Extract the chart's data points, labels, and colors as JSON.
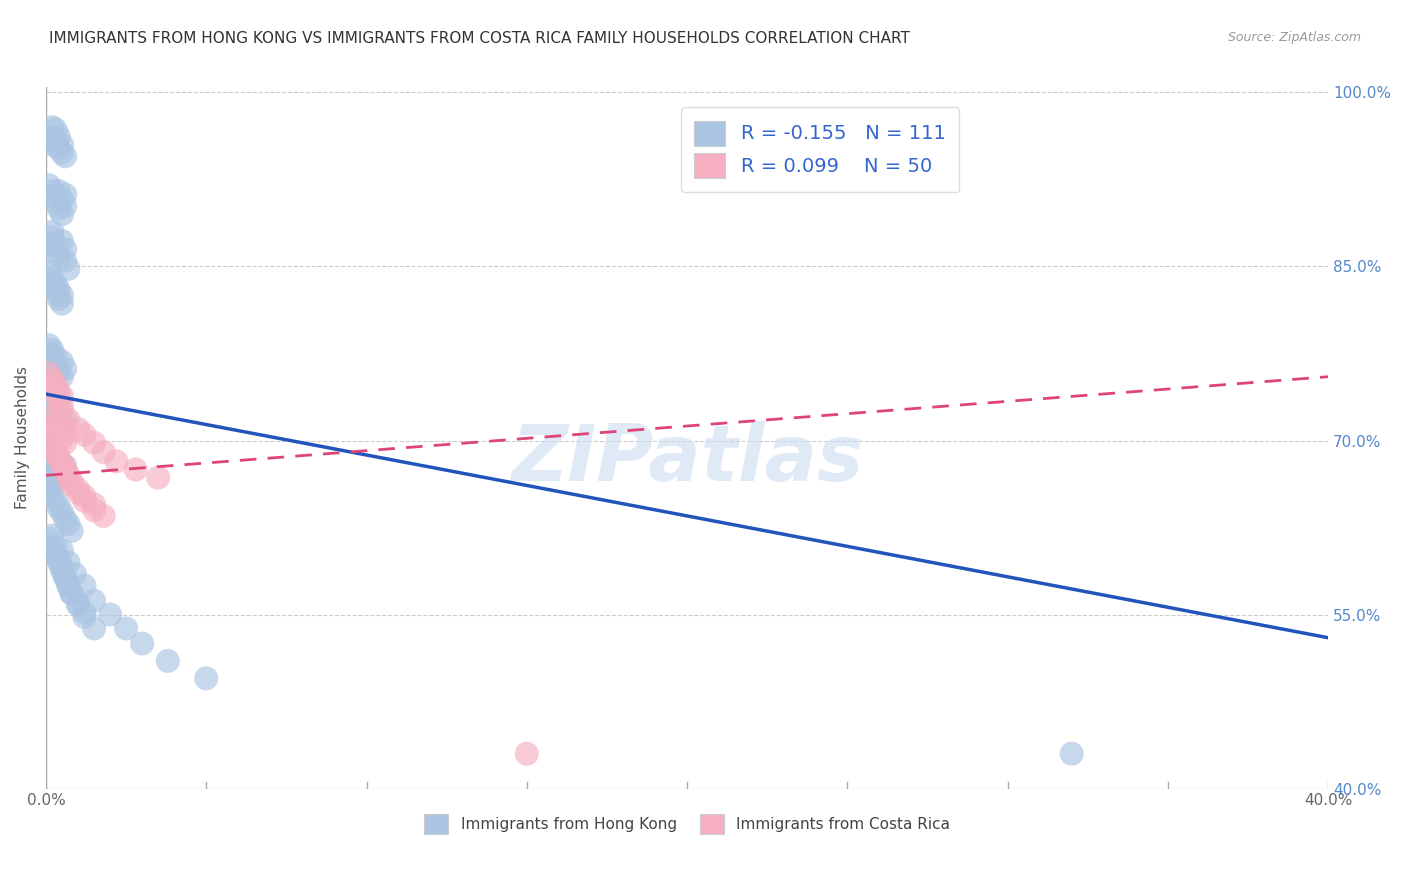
{
  "title": "IMMIGRANTS FROM HONG KONG VS IMMIGRANTS FROM COSTA RICA FAMILY HOUSEHOLDS CORRELATION CHART",
  "source": "Source: ZipAtlas.com",
  "ylabel": "Family Households",
  "xlim": [
    0.0,
    0.4
  ],
  "ylim": [
    0.4,
    1.005
  ],
  "yticks": [
    0.4,
    0.55,
    0.7,
    0.85,
    1.0
  ],
  "ytick_labels": [
    "40.0%",
    "55.0%",
    "70.0%",
    "85.0%",
    "100.0%"
  ],
  "xticks": [
    0.0,
    0.05,
    0.1,
    0.15,
    0.2,
    0.25,
    0.3,
    0.35,
    0.4
  ],
  "xtick_labels": [
    "0.0%",
    "",
    "",
    "",
    "",
    "",
    "",
    "",
    "40.0%"
  ],
  "hk_R": -0.155,
  "hk_N": 111,
  "cr_R": 0.099,
  "cr_N": 50,
  "hk_color": "#aac4e2",
  "cr_color": "#f5afc0",
  "hk_line_color": "#2255bb",
  "cr_line_color": "#dd4477",
  "legend_label_hk": "Immigrants from Hong Kong",
  "legend_label_cr": "Immigrants from Costa Rica",
  "hk_scatter_x": [
    0.001,
    0.002,
    0.002,
    0.003,
    0.003,
    0.004,
    0.004,
    0.005,
    0.005,
    0.006,
    0.001,
    0.002,
    0.003,
    0.003,
    0.004,
    0.004,
    0.005,
    0.005,
    0.006,
    0.006,
    0.001,
    0.002,
    0.002,
    0.003,
    0.003,
    0.004,
    0.005,
    0.006,
    0.006,
    0.007,
    0.001,
    0.001,
    0.002,
    0.002,
    0.003,
    0.003,
    0.004,
    0.004,
    0.005,
    0.005,
    0.001,
    0.001,
    0.002,
    0.002,
    0.003,
    0.003,
    0.004,
    0.005,
    0.005,
    0.006,
    0.001,
    0.001,
    0.002,
    0.002,
    0.003,
    0.003,
    0.004,
    0.004,
    0.005,
    0.006,
    0.001,
    0.001,
    0.002,
    0.002,
    0.003,
    0.003,
    0.004,
    0.004,
    0.005,
    0.006,
    0.001,
    0.001,
    0.002,
    0.002,
    0.003,
    0.004,
    0.005,
    0.006,
    0.007,
    0.008,
    0.001,
    0.002,
    0.003,
    0.004,
    0.005,
    0.006,
    0.007,
    0.008,
    0.01,
    0.012,
    0.002,
    0.003,
    0.004,
    0.005,
    0.006,
    0.007,
    0.008,
    0.01,
    0.012,
    0.015,
    0.005,
    0.007,
    0.009,
    0.012,
    0.015,
    0.02,
    0.025,
    0.03,
    0.038,
    0.05,
    0.32
  ],
  "hk_scatter_y": [
    0.96,
    0.97,
    0.955,
    0.968,
    0.958,
    0.952,
    0.962,
    0.948,
    0.955,
    0.945,
    0.92,
    0.915,
    0.905,
    0.91,
    0.9,
    0.915,
    0.908,
    0.895,
    0.902,
    0.912,
    0.87,
    0.88,
    0.875,
    0.862,
    0.868,
    0.858,
    0.872,
    0.865,
    0.855,
    0.848,
    0.838,
    0.845,
    0.832,
    0.84,
    0.828,
    0.835,
    0.822,
    0.83,
    0.818,
    0.825,
    0.775,
    0.782,
    0.77,
    0.778,
    0.765,
    0.772,
    0.76,
    0.768,
    0.755,
    0.762,
    0.73,
    0.738,
    0.725,
    0.732,
    0.72,
    0.728,
    0.715,
    0.722,
    0.71,
    0.718,
    0.69,
    0.698,
    0.685,
    0.692,
    0.68,
    0.688,
    0.675,
    0.682,
    0.67,
    0.678,
    0.658,
    0.665,
    0.652,
    0.66,
    0.648,
    0.642,
    0.638,
    0.632,
    0.628,
    0.622,
    0.615,
    0.608,
    0.6,
    0.595,
    0.588,
    0.582,
    0.575,
    0.568,
    0.56,
    0.552,
    0.618,
    0.608,
    0.598,
    0.59,
    0.582,
    0.575,
    0.568,
    0.558,
    0.548,
    0.538,
    0.605,
    0.595,
    0.585,
    0.575,
    0.562,
    0.55,
    0.538,
    0.525,
    0.51,
    0.495,
    0.43
  ],
  "cr_scatter_x": [
    0.001,
    0.001,
    0.002,
    0.002,
    0.003,
    0.003,
    0.004,
    0.004,
    0.005,
    0.005,
    0.001,
    0.002,
    0.002,
    0.003,
    0.003,
    0.004,
    0.005,
    0.005,
    0.006,
    0.006,
    0.002,
    0.003,
    0.004,
    0.005,
    0.006,
    0.007,
    0.008,
    0.01,
    0.012,
    0.015,
    0.003,
    0.004,
    0.005,
    0.006,
    0.007,
    0.008,
    0.01,
    0.012,
    0.015,
    0.018,
    0.005,
    0.007,
    0.01,
    0.012,
    0.015,
    0.018,
    0.022,
    0.028,
    0.035,
    0.15
  ],
  "cr_scatter_y": [
    0.75,
    0.758,
    0.745,
    0.752,
    0.74,
    0.748,
    0.735,
    0.742,
    0.73,
    0.738,
    0.72,
    0.715,
    0.708,
    0.712,
    0.705,
    0.71,
    0.702,
    0.708,
    0.698,
    0.705,
    0.695,
    0.69,
    0.685,
    0.68,
    0.675,
    0.67,
    0.665,
    0.658,
    0.652,
    0.645,
    0.69,
    0.685,
    0.68,
    0.675,
    0.668,
    0.662,
    0.655,
    0.648,
    0.64,
    0.635,
    0.725,
    0.718,
    0.71,
    0.705,
    0.698,
    0.69,
    0.682,
    0.675,
    0.668,
    0.43
  ],
  "hk_trend_x": [
    0.0,
    0.4
  ],
  "hk_trend_y": [
    0.74,
    0.53
  ],
  "cr_trend_x": [
    0.0,
    0.4
  ],
  "cr_trend_y": [
    0.67,
    0.755
  ]
}
